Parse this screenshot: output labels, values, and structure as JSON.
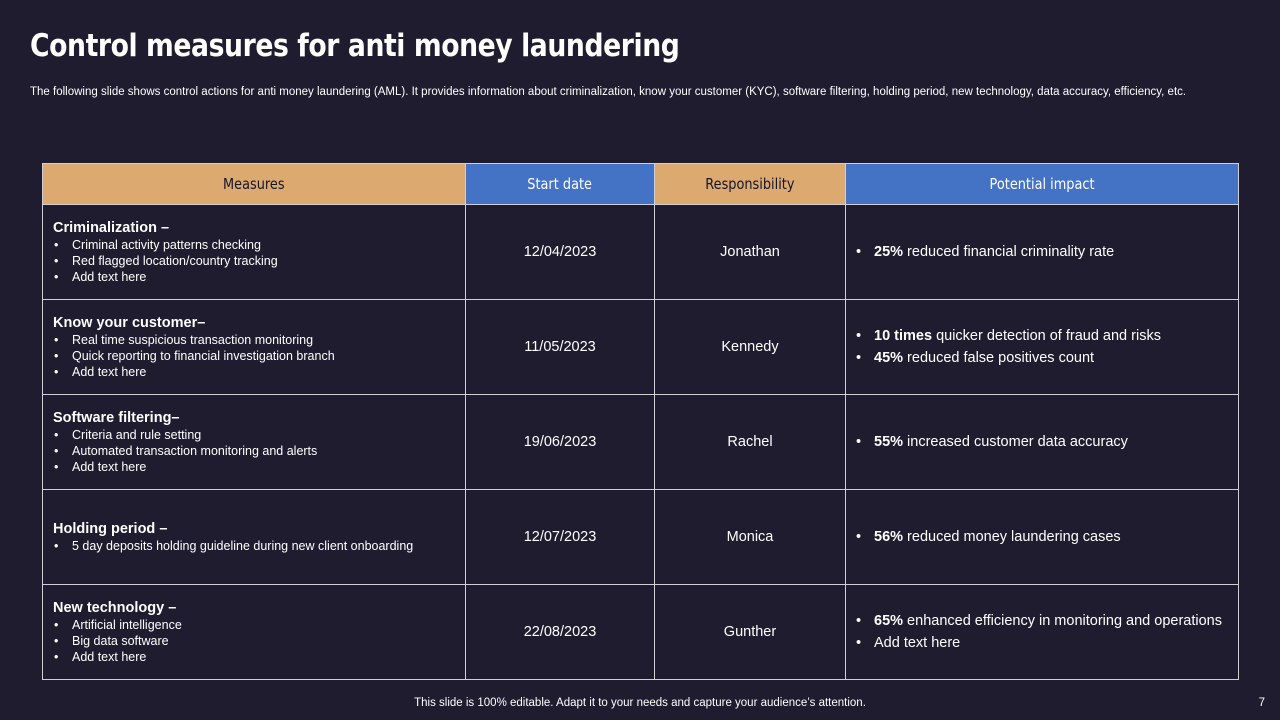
{
  "title": "Control measures for anti money laundering",
  "subtitle": "The following slide shows control actions for anti money laundering (AML). It provides information about criminalization, know your customer (KYC), software filtering, holding period, new technology, data accuracy,  efficiency, etc.",
  "table": {
    "headers": [
      "Measures",
      "Start date",
      "Responsibility",
      "Potential  impact"
    ],
    "rows": [
      {
        "measure": "Criminalization –",
        "items": [
          "Criminal  activity patterns checking",
          "Red flagged  location/country tracking",
          "Add text here"
        ],
        "date": "12/04/2023",
        "owner": "Jonathan",
        "impacts": [
          {
            "bold": "25%",
            "text": " reduced financial criminality rate"
          }
        ]
      },
      {
        "measure": "Know your customer–",
        "items": [
          "Real time suspicious transaction monitoring",
          "Quick reporting  to financial  investigation  branch",
          "Add text here"
        ],
        "date": "11/05/2023",
        "owner": "Kennedy",
        "impacts": [
          {
            "bold": "10 times",
            "text": " quicker detection of fraud and risks"
          },
          {
            "bold": "45%",
            "text": " reduced false positives count"
          }
        ]
      },
      {
        "measure": "Software filtering–",
        "items": [
          "Criteria  and rule  setting",
          "Automated transaction  monitoring  and alerts",
          "Add text here"
        ],
        "date": "19/06/2023",
        "owner": "Rachel",
        "impacts": [
          {
            "bold": "55%",
            "text": " increased customer data accuracy"
          }
        ]
      },
      {
        "measure": "Holding period –",
        "items": [
          "5 day deposits holding  guideline  during  new client  onboarding"
        ],
        "date": "12/07/2023",
        "owner": "Monica",
        "impacts": [
          {
            "bold": "56%",
            "text": " reduced money laundering  cases"
          }
        ]
      },
      {
        "measure": "New technology –",
        "items": [
          "Artificial intelligence",
          "Big data software",
          "Add text here"
        ],
        "date": "22/08/2023",
        "owner": "Gunther",
        "impacts": [
          {
            "bold": "65%",
            "text": " enhanced efficiency in monitoring and operations"
          },
          {
            "bold": "",
            "text": "Add text here"
          }
        ]
      }
    ]
  },
  "footer": "This slide is 100% editable. Adapt it to your needs and capture your audience’s attention.",
  "page_number": "7",
  "colors": {
    "background": "#1e1c2e",
    "header_gold": "#dcaa70",
    "header_blue": "#4472c4"
  }
}
